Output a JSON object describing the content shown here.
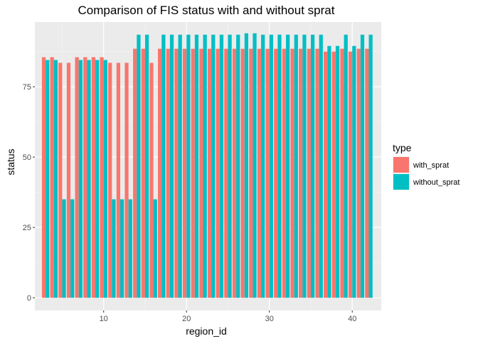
{
  "chart_data": {
    "type": "bar",
    "title": "Comparison of FIS status with and without sprat",
    "xlabel": "region_id",
    "ylabel": "status",
    "xlim": [
      1.7,
      43.5
    ],
    "ylim": [
      -4.5,
      98
    ],
    "x_ticks": [
      10,
      20,
      30,
      40
    ],
    "y_ticks": [
      0,
      25,
      50,
      75
    ],
    "grid": true,
    "legend": {
      "title": "type",
      "position": "right"
    },
    "x": [
      3,
      4,
      5,
      6,
      7,
      8,
      9,
      10,
      11,
      12,
      13,
      14,
      15,
      16,
      17,
      18,
      19,
      20,
      21,
      22,
      23,
      24,
      25,
      26,
      27,
      28,
      29,
      30,
      31,
      32,
      33,
      34,
      35,
      36,
      37,
      38,
      39,
      40,
      41,
      42
    ],
    "series": [
      {
        "name": "with_sprat",
        "color": "#F8766D",
        "values": [
          85.5,
          85.5,
          83.5,
          83.5,
          85.5,
          85.5,
          85.5,
          85.5,
          83.5,
          83.5,
          83.5,
          88.5,
          88.5,
          83.5,
          88.5,
          88.5,
          88.5,
          88.5,
          88.5,
          88.5,
          88.5,
          88.5,
          88.5,
          88.5,
          88.5,
          88.5,
          88.5,
          88.5,
          88.5,
          88.5,
          88.5,
          88.5,
          88.5,
          88.5,
          87.5,
          87.5,
          88.5,
          87.5,
          88.5,
          88.5
        ]
      },
      {
        "name": "without_sprat",
        "color": "#00BFC4",
        "values": [
          84.5,
          84.5,
          35,
          35,
          84.5,
          84.5,
          84.5,
          84.5,
          35,
          35,
          35,
          93.5,
          93.5,
          35,
          93.5,
          93.5,
          93.5,
          93.5,
          93.5,
          93.5,
          93.5,
          93.5,
          93.5,
          93.5,
          94,
          94,
          93.5,
          93.5,
          93.5,
          93.5,
          93.5,
          93.5,
          93.5,
          93.5,
          89.5,
          89.5,
          93.5,
          89.5,
          93.5,
          93.5
        ]
      }
    ]
  }
}
